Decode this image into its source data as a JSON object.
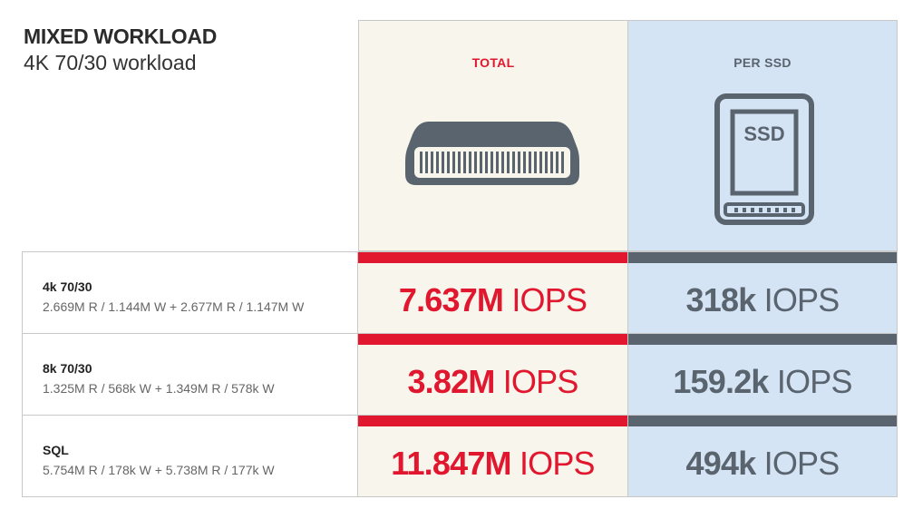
{
  "header": {
    "title": "MIXED WORKLOAD",
    "subtitle": "4K 70/30 workload"
  },
  "columns": {
    "total": {
      "label": "TOTAL",
      "icon": "server-icon",
      "accent": "#e0172e",
      "background": "#f8f6ec"
    },
    "per_ssd": {
      "label": "PER SSD",
      "icon": "ssd-icon",
      "icon_text": "SSD",
      "accent": "#5a646e",
      "background": "#d5e4f5"
    }
  },
  "rows": [
    {
      "name": "4k 70/30",
      "detail": "2.669M R / 1.144M W + 2.677M R / 1.147M W",
      "total": {
        "number": "7.637M",
        "unit": "IOPS"
      },
      "per_ssd": {
        "number": "318k",
        "unit": "IOPS"
      }
    },
    {
      "name": "8k 70/30",
      "detail": "1.325M R / 568k W + 1.349M R / 578k W",
      "total": {
        "number": "3.82M",
        "unit": "IOPS"
      },
      "per_ssd": {
        "number": "159.2k",
        "unit": "IOPS"
      }
    },
    {
      "name": "SQL",
      "detail": "5.754M R / 178k W + 5.738M R / 177k W",
      "total": {
        "number": "11.847M",
        "unit": "IOPS"
      },
      "per_ssd": {
        "number": "494k",
        "unit": "IOPS"
      }
    }
  ]
}
